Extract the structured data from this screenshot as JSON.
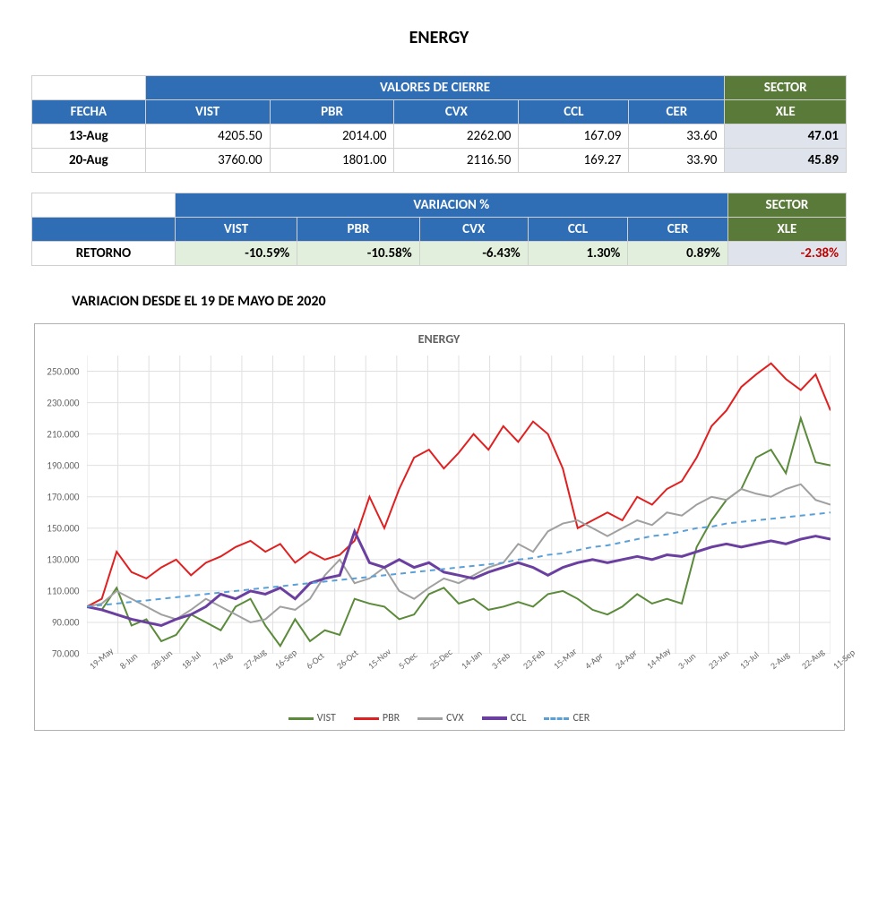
{
  "title": "ENERGY",
  "table_valores": {
    "header_main": "VALORES DE CIERRE",
    "header_sector": "SECTOR",
    "header_xle": "XLE",
    "col_fecha": "FECHA",
    "cols": [
      "VIST",
      "PBR",
      "CVX",
      "CCL",
      "CER"
    ],
    "rows": [
      {
        "fecha": "13-Aug",
        "vals": [
          "4205.50",
          "2014.00",
          "2262.00",
          "167.09",
          "33.60"
        ],
        "xle": "47.01"
      },
      {
        "fecha": "20-Aug",
        "vals": [
          "3760.00",
          "1801.00",
          "2116.50",
          "169.27",
          "33.90"
        ],
        "xle": "45.89"
      }
    ]
  },
  "table_variacion": {
    "header_main": "VARIACION %",
    "header_sector": "SECTOR",
    "header_xle": "XLE",
    "cols": [
      "VIST",
      "PBR",
      "CVX",
      "CCL",
      "CER"
    ],
    "row_label": "RETORNO",
    "vals": [
      "-10.59%",
      "-10.58%",
      "-6.43%",
      "1.30%",
      "0.89%"
    ],
    "xle": "-2.38%",
    "xle_color": "#c00000"
  },
  "chart_subtitle": "VARIACION DESDE EL 19 DE MAYO DE 2020",
  "chart": {
    "type": "line",
    "title": "ENERGY",
    "title_fontsize": 14,
    "background_color": "#ffffff",
    "grid_color": "#e0e0e0",
    "ylim": [
      70,
      260
    ],
    "ytick_step": 20,
    "yticks": [
      70,
      90,
      110,
      130,
      150,
      170,
      190,
      210,
      230,
      250
    ],
    "ytick_labels": [
      "70.000",
      "90.000",
      "110.000",
      "130.000",
      "150.000",
      "170.000",
      "190.000",
      "210.000",
      "230.000",
      "250.000"
    ],
    "x_labels": [
      "19-May",
      "8-Jun",
      "28-Jun",
      "18-Jul",
      "7-Aug",
      "27-Aug",
      "16-Sep",
      "6-Oct",
      "26-Oct",
      "15-Nov",
      "5-Dec",
      "25-Dec",
      "14-Jan",
      "3-Feb",
      "23-Feb",
      "15-Mar",
      "4-Apr",
      "24-Apr",
      "14-May",
      "3-Jun",
      "23-Jun",
      "13-Jul",
      "2-Aug",
      "22-Aug",
      "11-Sep"
    ],
    "series": [
      {
        "name": "VIST",
        "color": "#5a8a3a",
        "width": 2,
        "dash": "none",
        "data": [
          100,
          98,
          112,
          88,
          92,
          78,
          82,
          95,
          90,
          85,
          100,
          105,
          88,
          75,
          92,
          78,
          85,
          82,
          105,
          102,
          100,
          92,
          95,
          108,
          112,
          102,
          105,
          98,
          100,
          103,
          100,
          108,
          110,
          105,
          98,
          95,
          100,
          108,
          102,
          105,
          102,
          138,
          155,
          168,
          175,
          195,
          200,
          185,
          220,
          192,
          190
        ]
      },
      {
        "name": "PBR",
        "color": "#e02020",
        "width": 2,
        "dash": "none",
        "data": [
          100,
          105,
          135,
          122,
          118,
          125,
          130,
          120,
          128,
          132,
          138,
          142,
          135,
          140,
          128,
          135,
          130,
          133,
          142,
          170,
          150,
          175,
          195,
          200,
          188,
          198,
          210,
          200,
          215,
          205,
          218,
          210,
          188,
          150,
          155,
          160,
          155,
          170,
          165,
          175,
          180,
          195,
          215,
          225,
          240,
          248,
          255,
          245,
          238,
          248,
          225
        ]
      },
      {
        "name": "CVX",
        "color": "#a0a0a0",
        "width": 2,
        "dash": "none",
        "data": [
          100,
          102,
          110,
          105,
          100,
          95,
          92,
          98,
          105,
          100,
          95,
          90,
          92,
          100,
          98,
          105,
          120,
          130,
          115,
          118,
          125,
          110,
          105,
          112,
          118,
          115,
          120,
          125,
          128,
          140,
          135,
          148,
          153,
          155,
          150,
          145,
          150,
          155,
          152,
          160,
          158,
          165,
          170,
          168,
          175,
          172,
          170,
          175,
          178,
          168,
          165
        ]
      },
      {
        "name": "CCL",
        "color": "#6a3fa0",
        "width": 3,
        "dash": "none",
        "data": [
          100,
          98,
          95,
          92,
          90,
          88,
          92,
          95,
          100,
          108,
          105,
          110,
          108,
          112,
          105,
          115,
          118,
          120,
          148,
          128,
          125,
          130,
          125,
          128,
          122,
          120,
          118,
          122,
          125,
          128,
          125,
          120,
          125,
          128,
          130,
          128,
          130,
          132,
          130,
          133,
          132,
          135,
          138,
          140,
          138,
          140,
          142,
          140,
          143,
          145,
          143
        ]
      },
      {
        "name": "CER",
        "color": "#5aa0d8",
        "width": 2,
        "dash": "6,5",
        "data": [
          100,
          101,
          102,
          103,
          104,
          105,
          106,
          107,
          108,
          109,
          110,
          111,
          112,
          113,
          114,
          115,
          116,
          117,
          118,
          119,
          120,
          121,
          122,
          123,
          124,
          125,
          126,
          127,
          128,
          130,
          131,
          133,
          134,
          136,
          138,
          139,
          141,
          143,
          145,
          146,
          148,
          150,
          151,
          153,
          154,
          155,
          156,
          157,
          158,
          159,
          160
        ]
      }
    ],
    "legend_position": "bottom"
  }
}
